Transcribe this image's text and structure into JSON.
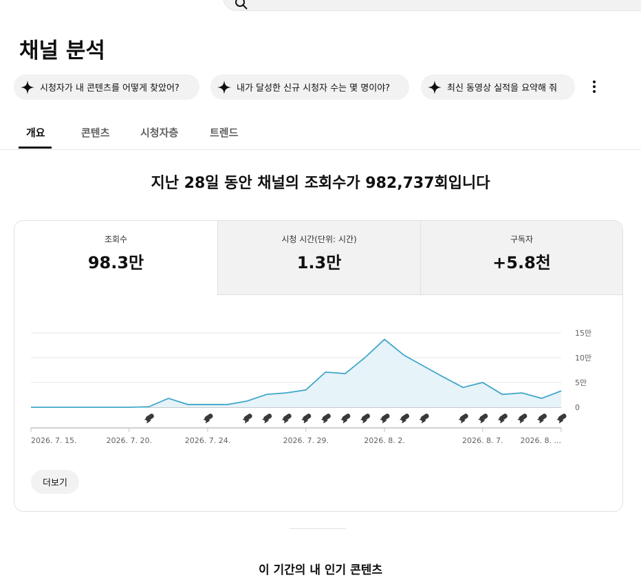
{
  "header": {
    "title": "채널 분석"
  },
  "chips": [
    "시청자가 내 콘텐츠를 어떻게 찾았어?",
    "내가 달성한 신규 시청자 수는 몇 명이야?",
    "최신 동영상 실적을 요약해 줘"
  ],
  "tabs": [
    "개요",
    "콘텐츠",
    "시청자층",
    "트렌드"
  ],
  "summary": "지난 28일 동안 채널의 조회수가 982,737회입니다",
  "metrics": [
    {
      "label": "조회수",
      "value": "98.3만"
    },
    {
      "label": "시청 시간(단위: 시간)",
      "value": "1.3만"
    },
    {
      "label": "구독자",
      "value": "+5.8천"
    }
  ],
  "chart_data": {
    "type": "area",
    "x": [
      "2026-07-15",
      "2026-07-16",
      "2026-07-17",
      "2026-07-18",
      "2026-07-19",
      "2026-07-20",
      "2026-07-21",
      "2026-07-22",
      "2026-07-23",
      "2026-07-24",
      "2026-07-25",
      "2026-07-26",
      "2026-07-27",
      "2026-07-28",
      "2026-07-29",
      "2026-07-30",
      "2026-07-31",
      "2026-08-01",
      "2026-08-02",
      "2026-08-03",
      "2026-08-04",
      "2026-08-05",
      "2026-08-06",
      "2026-08-07",
      "2026-08-08",
      "2026-08-09",
      "2026-08-10",
      "2026-08-11"
    ],
    "values": [
      0,
      0,
      0,
      0,
      0,
      0,
      1000,
      18000,
      5500,
      5500,
      5500,
      12500,
      26000,
      29000,
      35000,
      71000,
      68000,
      100000,
      137000,
      105000,
      83000,
      61000,
      40000,
      50000,
      26000,
      29000,
      18000,
      33000
    ],
    "color": "#3ea6c9",
    "fill": "#e6f3f9",
    "xlim": [
      "2026-07-15",
      "2026-08-11"
    ],
    "xticks": [
      {
        "value": "2026-07-15",
        "label": "2026. 7. 15."
      },
      {
        "value": "2026-07-20",
        "label": "2026. 7. 20."
      },
      {
        "value": "2026-07-24",
        "label": "2026. 7. 24."
      },
      {
        "value": "2026-07-29",
        "label": "2026. 7. 29."
      },
      {
        "value": "2026-08-02",
        "label": "2026. 8. 2."
      },
      {
        "value": "2026-08-07",
        "label": "2026. 8. 7."
      },
      {
        "value": "2026-08-11",
        "label": "2026. 8. ..."
      }
    ],
    "ylim": [
      0,
      150000
    ],
    "yticks": [
      0,
      {
        "value": 50000,
        "label": "5만"
      },
      {
        "value": 100000,
        "label": "10만"
      },
      {
        "value": 150000,
        "label": "15만"
      }
    ],
    "grid": true,
    "markers": [
      "2026-07-21",
      "2026-07-24",
      "2026-07-26",
      "2026-07-27",
      "2026-07-28",
      "2026-07-29",
      "2026-07-30",
      "2026-07-31",
      "2026-08-01",
      "2026-08-02",
      "2026-08-03",
      "2026-08-04",
      "2026-08-06",
      "2026-08-07",
      "2026-08-08",
      "2026-08-09",
      "2026-08-10",
      "2026-08-11"
    ]
  },
  "more_button": "더보기",
  "section_title": "이 기간의 내 인기 콘텐츠"
}
